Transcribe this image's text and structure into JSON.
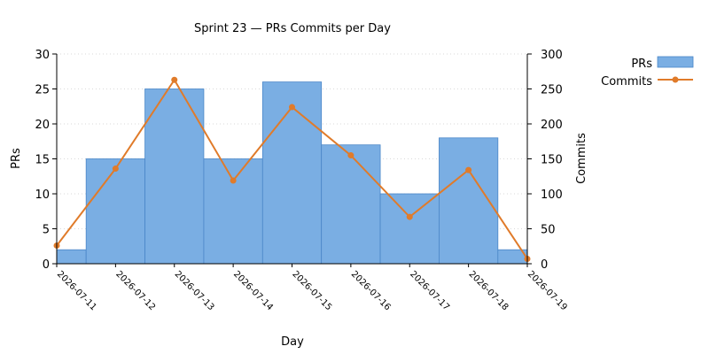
{
  "chart_data": {
    "type": "bar",
    "title": "Sprint 23 — PRs  Commits per Day",
    "xlabel": "Day",
    "ylabel_left": "PRs",
    "ylabel_right": "Commits",
    "x_ticks": [
      "2026-07-11",
      "2026-07-12",
      "2026-07-13",
      "2026-07-14",
      "2026-07-15",
      "2026-07-16",
      "2026-07-17",
      "2026-07-18",
      "2026-07-19"
    ],
    "ylim_left": [
      0,
      30
    ],
    "yticks_left": [
      "0",
      "5",
      "10",
      "15",
      "20",
      "25",
      "30"
    ],
    "ylim_right": [
      0,
      300
    ],
    "yticks_right": [
      "0",
      "50",
      "100",
      "150",
      "200",
      "250",
      "300"
    ],
    "grid": "y-dotted",
    "legend_position": "top-right-outside",
    "series": [
      {
        "name": "PRs",
        "kind": "bar",
        "axis": "left",
        "color": "#7aaee3",
        "edge_color": "#4a86c8",
        "x": [
          "2026-07-11",
          "2026-07-12",
          "2026-07-13",
          "2026-07-14",
          "2026-07-15",
          "2026-07-16",
          "2026-07-17",
          "2026-07-18",
          "2026-07-19"
        ],
        "values": [
          2,
          15,
          25,
          15,
          26,
          17,
          10,
          18,
          2
        ]
      },
      {
        "name": "Commits",
        "kind": "line",
        "axis": "right",
        "color": "#e07b2a",
        "x": [
          "2026-07-11",
          "2026-07-12",
          "2026-07-13",
          "2026-07-14",
          "2026-07-15",
          "2026-07-16",
          "2026-07-17",
          "2026-07-18",
          "2026-07-19"
        ],
        "values": [
          26,
          136,
          263,
          119,
          224,
          155,
          67,
          134,
          7
        ]
      }
    ]
  }
}
